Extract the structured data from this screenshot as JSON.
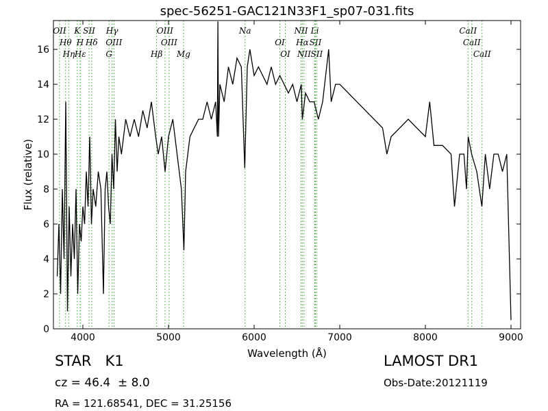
{
  "chart_data": {
    "type": "line",
    "title": "spec-56251-GAC121N33F1_sp07-031.fits",
    "xlabel": "Wavelength (Å)",
    "ylabel": "Flux (relative)",
    "xlim": [
      3656,
      9112
    ],
    "ylim": [
      0,
      17.65
    ],
    "xticks": [
      4000,
      5000,
      6000,
      7000,
      8000,
      9000
    ],
    "yticks": [
      0,
      2,
      4,
      6,
      8,
      10,
      12,
      14,
      16
    ],
    "color": "#000000",
    "x": [
      3700,
      3720,
      3740,
      3760,
      3780,
      3800,
      3820,
      3840,
      3860,
      3880,
      3900,
      3920,
      3940,
      3960,
      3980,
      4000,
      4020,
      4040,
      4060,
      4080,
      4100,
      4120,
      4150,
      4180,
      4210,
      4240,
      4260,
      4280,
      4300,
      4320,
      4340,
      4360,
      4380,
      4400,
      4420,
      4450,
      4500,
      4550,
      4600,
      4650,
      4700,
      4750,
      4800,
      4850,
      4880,
      4920,
      4960,
      5000,
      5050,
      5100,
      5150,
      5180,
      5200,
      5250,
      5300,
      5350,
      5400,
      5450,
      5500,
      5550,
      5570,
      5577,
      5584,
      5600,
      5650,
      5700,
      5750,
      5800,
      5850,
      5890,
      5920,
      5950,
      6000,
      6050,
      6100,
      6150,
      6200,
      6250,
      6300,
      6350,
      6400,
      6450,
      6500,
      6550,
      6563,
      6600,
      6650,
      6700,
      6750,
      6800,
      6870,
      6900,
      6950,
      7000,
      7100,
      7200,
      7300,
      7400,
      7500,
      7550,
      7600,
      7700,
      7800,
      7900,
      8000,
      8050,
      8100,
      8200,
      8300,
      8340,
      8400,
      8450,
      8480,
      8500,
      8540,
      8600,
      8660,
      8700,
      8750,
      8800,
      8850,
      8900,
      8950,
      9000
    ],
    "values": [
      3,
      6,
      2,
      8,
      4,
      13,
      1,
      7,
      3,
      6,
      4,
      8,
      2,
      6,
      5,
      7,
      6,
      9,
      7,
      11,
      6,
      8,
      7,
      9,
      8,
      2,
      8,
      9,
      7,
      6,
      10,
      8,
      12,
      9,
      11,
      10,
      12,
      11,
      12,
      11,
      12.5,
      11.5,
      13,
      11,
      10,
      11,
      9,
      11,
      12,
      10,
      8,
      4.5,
      9,
      11,
      11.5,
      12,
      12,
      13,
      12,
      13,
      11,
      17.6,
      11,
      14,
      13,
      15,
      14,
      15.5,
      15,
      9.2,
      15,
      16,
      14.5,
      15,
      14.5,
      14,
      15,
      14,
      14.5,
      14,
      13.5,
      14,
      13,
      14,
      12,
      13.5,
      13,
      13,
      12,
      13,
      16,
      13,
      14,
      14,
      13.5,
      13,
      12.5,
      12,
      11.5,
      10,
      11,
      11.5,
      12,
      11.5,
      11,
      13,
      10.5,
      10.5,
      10,
      7,
      10,
      10,
      8,
      11,
      10,
      9,
      7,
      10,
      8,
      10,
      10,
      9,
      10,
      0.5
    ],
    "line_color": "#2ca02c",
    "lines": [
      {
        "label": "OII",
        "wavelength": 3727
      },
      {
        "label": "Hθ",
        "wavelength": 3798
      },
      {
        "label": "Hη",
        "wavelength": 3835
      },
      {
        "label": "K",
        "wavelength": 3934
      },
      {
        "label": "H",
        "wavelength": 3968
      },
      {
        "label": "Hε",
        "wavelength": 3970
      },
      {
        "label": "SII",
        "wavelength": 4072
      },
      {
        "label": "Hδ",
        "wavelength": 4102
      },
      {
        "label": "G",
        "wavelength": 4305
      },
      {
        "label": "Hγ",
        "wavelength": 4341
      },
      {
        "label": "OIII",
        "wavelength": 4363
      },
      {
        "label": "Hβ",
        "wavelength": 4861
      },
      {
        "label": "OIII",
        "wavelength": 4959
      },
      {
        "label": "OIII",
        "wavelength": 5007
      },
      {
        "label": "Mg",
        "wavelength": 5175
      },
      {
        "label": "Na",
        "wavelength": 5894
      },
      {
        "label": "OI",
        "wavelength": 6300
      },
      {
        "label": "OI",
        "wavelength": 6364
      },
      {
        "label": "NII",
        "wavelength": 6548
      },
      {
        "label": "Hα",
        "wavelength": 6563
      },
      {
        "label": "NII",
        "wavelength": 6583
      },
      {
        "label": "Li",
        "wavelength": 6708
      },
      {
        "label": "SII",
        "wavelength": 6716
      },
      {
        "label": "SII",
        "wavelength": 6731
      },
      {
        "label": "CaII",
        "wavelength": 8498
      },
      {
        "label": "CaII",
        "wavelength": 8542
      },
      {
        "label": "CaII",
        "wavelength": 8662
      }
    ],
    "annotations": {
      "object_class": "STAR   K1",
      "redshift": "cz = 46.4  ± 8.0",
      "coordinates": "RA = 121.68541, DEC = 31.25156",
      "survey": "LAMOST DR1",
      "obs_date": "Obs-Date:20121119"
    }
  }
}
